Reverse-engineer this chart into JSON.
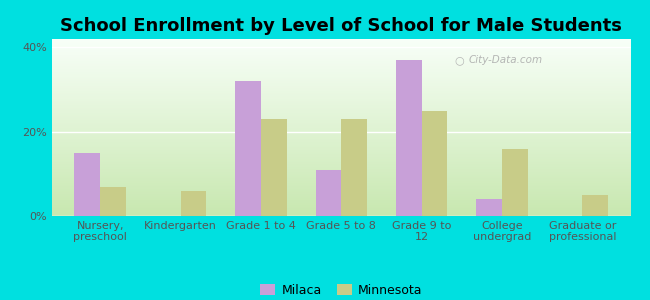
{
  "title": "School Enrollment by Level of School for Male Students",
  "categories": [
    "Nursery,\npreschool",
    "Kindergarten",
    "Grade 1 to 4",
    "Grade 5 to 8",
    "Grade 9 to\n12",
    "College\nundergrad",
    "Graduate or\nprofessional"
  ],
  "milaca_values": [
    15,
    0,
    32,
    11,
    37,
    4,
    0
  ],
  "minnesota_values": [
    7,
    6,
    23,
    23,
    25,
    16,
    5
  ],
  "milaca_color": "#c8a0d8",
  "minnesota_color": "#c8cc88",
  "background_outer": "#00e0e0",
  "background_inner_bottom": "#c8e8b0",
  "background_inner_top": "#f8fff8",
  "ylabel_ticks": [
    "0%",
    "20%",
    "40%"
  ],
  "ytick_values": [
    0,
    20,
    40
  ],
  "ylim": [
    0,
    42
  ],
  "title_fontsize": 13,
  "tick_fontsize": 8,
  "legend_fontsize": 9,
  "bar_width": 0.32,
  "watermark": "City-Data.com"
}
